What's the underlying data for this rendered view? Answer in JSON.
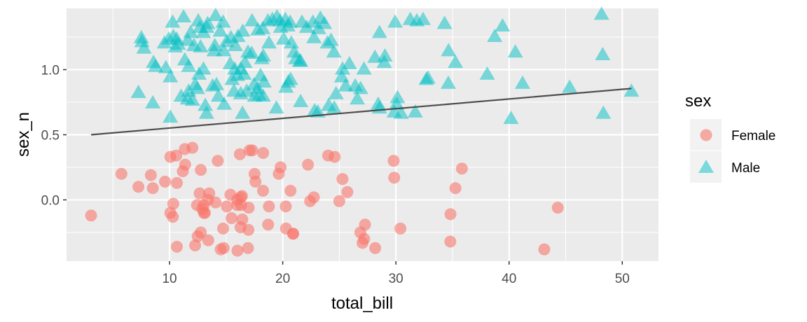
{
  "chart_data": {
    "type": "scatter",
    "xlabel": "total_bill",
    "ylabel": "sex_n",
    "xlim": [
      0.9,
      53.2
    ],
    "ylim": [
      -0.47,
      1.47
    ],
    "x_ticks": [
      10,
      20,
      30,
      40,
      50
    ],
    "x_tick_labels": [
      "10",
      "20",
      "30",
      "40",
      "50"
    ],
    "y_ticks": [
      0.0,
      0.5,
      1.0
    ],
    "y_tick_labels": [
      "0.0",
      "0.5",
      "1.0"
    ],
    "grid": true,
    "legend": {
      "title": "sex",
      "position": "right",
      "entries": [
        {
          "label": "Female",
          "shape": "circle",
          "color": "#F8766D"
        },
        {
          "label": "Male",
          "shape": "triangle",
          "color": "#00BFC4"
        }
      ]
    },
    "series": [
      {
        "name": "Female",
        "shape": "circle",
        "color": "#F8766D",
        "points": [
          [
            3.07,
            -0.12
          ],
          [
            5.75,
            0.2
          ],
          [
            7.25,
            0.1
          ],
          [
            8.35,
            0.19
          ],
          [
            8.52,
            0.09
          ],
          [
            9.6,
            0.14
          ],
          [
            10.07,
            -0.1
          ],
          [
            10.29,
            -0.13
          ],
          [
            10.33,
            -0.03
          ],
          [
            10.65,
            -0.36
          ],
          [
            10.65,
            0.13
          ],
          [
            10.07,
            0.33
          ],
          [
            10.59,
            0.34
          ],
          [
            11.17,
            0.22
          ],
          [
            11.38,
            0.27
          ],
          [
            11.35,
            0.39
          ],
          [
            12.02,
            0.4
          ],
          [
            12.26,
            -0.35
          ],
          [
            12.43,
            -0.04
          ],
          [
            12.48,
            -0.28
          ],
          [
            12.66,
            0.05
          ],
          [
            12.76,
            -0.25
          ],
          [
            12.76,
            0.23
          ],
          [
            12.9,
            -0.07
          ],
          [
            13.03,
            -0.1
          ],
          [
            13.03,
            -0.04
          ],
          [
            13.13,
            -0.1
          ],
          [
            13.42,
            -0.31
          ],
          [
            13.51,
            0.05
          ],
          [
            13.39,
            0.0
          ],
          [
            14.07,
            -0.02
          ],
          [
            14.52,
            -0.38
          ],
          [
            14.78,
            -0.37
          ],
          [
            14.73,
            -0.22
          ],
          [
            14.26,
            0.3
          ],
          [
            15.06,
            -0.05
          ],
          [
            15.38,
            0.04
          ],
          [
            15.48,
            -0.14
          ],
          [
            15.98,
            -0.04
          ],
          [
            15.98,
            0.0
          ],
          [
            16.0,
            -0.39
          ],
          [
            16.27,
            -0.21
          ],
          [
            16.29,
            0.02
          ],
          [
            16.4,
            0.03
          ],
          [
            16.32,
            -0.04
          ],
          [
            16.21,
            0.35
          ],
          [
            16.43,
            -0.15
          ],
          [
            16.97,
            -0.23
          ],
          [
            16.99,
            -0.06
          ],
          [
            16.93,
            -0.37
          ],
          [
            17.07,
            0.38
          ],
          [
            17.31,
            0.38
          ],
          [
            17.51,
            0.2
          ],
          [
            17.59,
            0.14
          ],
          [
            18.26,
            0.07
          ],
          [
            18.27,
            0.36
          ],
          [
            18.71,
            -0.19
          ],
          [
            18.78,
            -0.05
          ],
          [
            19.65,
            0.2
          ],
          [
            19.81,
            0.25
          ],
          [
            20.27,
            -0.05
          ],
          [
            20.29,
            -0.22
          ],
          [
            20.69,
            0.07
          ],
          [
            20.92,
            -0.26
          ],
          [
            20.92,
            -0.26
          ],
          [
            22.23,
            0.27
          ],
          [
            22.42,
            -0.01
          ],
          [
            22.75,
            0.02
          ],
          [
            24.01,
            0.34
          ],
          [
            24.59,
            0.33
          ],
          [
            25.0,
            -0.01
          ],
          [
            25.28,
            0.16
          ],
          [
            25.71,
            0.06
          ],
          [
            26.86,
            -0.25
          ],
          [
            27.05,
            -0.33
          ],
          [
            27.2,
            -0.3
          ],
          [
            27.27,
            -0.19
          ],
          [
            28.17,
            -0.37
          ],
          [
            29.85,
            0.17
          ],
          [
            29.8,
            0.3
          ],
          [
            30.4,
            -0.22
          ],
          [
            34.81,
            -0.32
          ],
          [
            34.82,
            -0.11
          ],
          [
            35.26,
            0.09
          ],
          [
            35.83,
            0.24
          ],
          [
            43.11,
            -0.38
          ],
          [
            44.3,
            -0.06
          ]
        ]
      },
      {
        "name": "Male",
        "shape": "triangle",
        "color": "#00BFC4",
        "points": [
          [
            7.25,
            0.82
          ],
          [
            7.51,
            1.24
          ],
          [
            7.74,
            1.16
          ],
          [
            7.56,
            1.21
          ],
          [
            8.58,
            1.05
          ],
          [
            8.52,
            0.74
          ],
          [
            8.77,
            1.02
          ],
          [
            9.68,
            1.01
          ],
          [
            9.55,
            1.2
          ],
          [
            9.94,
            1.23
          ],
          [
            10.07,
            0.63
          ],
          [
            10.07,
            0.94
          ],
          [
            10.34,
            1.25
          ],
          [
            10.27,
            1.36
          ],
          [
            10.51,
            1.17
          ],
          [
            10.63,
            1.23
          ],
          [
            10.77,
            1.19
          ],
          [
            11.02,
            0.79
          ],
          [
            11.24,
            1.4
          ],
          [
            11.35,
            1.07
          ],
          [
            11.61,
            1.22
          ],
          [
            11.69,
            0.83
          ],
          [
            11.87,
            1.28
          ],
          [
            11.69,
            1.02
          ],
          [
            11.59,
            0.77
          ],
          [
            12.16,
            1.18
          ],
          [
            12.03,
            0.76
          ],
          [
            12.26,
            0.88
          ],
          [
            12.46,
            0.85
          ],
          [
            12.6,
            0.96
          ],
          [
            12.54,
            1.37
          ],
          [
            12.69,
            1.32
          ],
          [
            12.74,
            1.17
          ],
          [
            13.0,
            1.0
          ],
          [
            13.0,
            1.28
          ],
          [
            13.16,
            0.72
          ],
          [
            13.28,
            1.32
          ],
          [
            13.27,
            0.66
          ],
          [
            13.37,
            1.35
          ],
          [
            13.81,
            0.87
          ],
          [
            13.94,
            1.14
          ],
          [
            14.0,
            1.18
          ],
          [
            14.07,
            1.41
          ],
          [
            14.15,
            0.88
          ],
          [
            14.31,
            0.79
          ],
          [
            14.48,
            1.29
          ],
          [
            14.73,
            1.36
          ],
          [
            14.83,
            0.73
          ],
          [
            14.78,
            1.14
          ],
          [
            15.04,
            1.21
          ],
          [
            15.36,
            1.04
          ],
          [
            15.42,
            1.24
          ],
          [
            15.53,
            0.92
          ],
          [
            15.69,
            0.83
          ],
          [
            15.77,
            1.0
          ],
          [
            15.81,
            1.18
          ],
          [
            16.0,
            0.95
          ],
          [
            16.04,
            1.25
          ],
          [
            16.29,
            0.81
          ],
          [
            16.29,
            1.0
          ],
          [
            16.45,
            0.66
          ],
          [
            16.47,
            1.29
          ],
          [
            16.58,
            0.96
          ],
          [
            16.82,
            0.83
          ],
          [
            16.66,
            1.05
          ],
          [
            16.93,
            1.13
          ],
          [
            17.26,
            1.12
          ],
          [
            17.29,
            1.37
          ],
          [
            17.46,
            0.88
          ],
          [
            17.51,
            0.79
          ],
          [
            17.78,
            0.85
          ],
          [
            17.81,
            1.3
          ],
          [
            17.92,
            0.8
          ],
          [
            18.04,
            0.95
          ],
          [
            18.15,
            1.08
          ],
          [
            18.24,
            1.31
          ],
          [
            18.28,
            0.79
          ],
          [
            18.35,
            0.9
          ],
          [
            18.29,
            1.1
          ],
          [
            18.69,
            1.37
          ],
          [
            18.78,
            1.2
          ],
          [
            19.08,
            1.38
          ],
          [
            19.44,
            0.7
          ],
          [
            19.49,
            1.4
          ],
          [
            19.77,
            1.37
          ],
          [
            19.82,
            1.32
          ],
          [
            20.08,
            1.23
          ],
          [
            20.23,
            1.38
          ],
          [
            20.29,
            0.86
          ],
          [
            20.45,
            1.33
          ],
          [
            20.49,
            0.9
          ],
          [
            20.65,
            1.36
          ],
          [
            20.69,
            0.92
          ],
          [
            20.76,
            1.2
          ],
          [
            21.01,
            1.13
          ],
          [
            21.16,
            1.08
          ],
          [
            21.5,
            1.06
          ],
          [
            21.58,
            1.06
          ],
          [
            21.7,
            1.36
          ],
          [
            21.58,
            0.75
          ],
          [
            22.12,
            1.32
          ],
          [
            22.67,
            1.36
          ],
          [
            22.76,
            1.24
          ],
          [
            22.82,
            0.68
          ],
          [
            23.1,
            0.67
          ],
          [
            23.33,
            1.39
          ],
          [
            23.17,
            1.31
          ],
          [
            23.68,
            1.35
          ],
          [
            23.95,
            1.2
          ],
          [
            24.06,
            0.72
          ],
          [
            24.27,
            1.22
          ],
          [
            24.52,
            1.13
          ],
          [
            24.55,
            0.7
          ],
          [
            24.71,
            0.81
          ],
          [
            25.21,
            0.94
          ],
          [
            25.29,
            1.0
          ],
          [
            25.56,
            0.87
          ],
          [
            25.89,
            1.04
          ],
          [
            26.41,
            0.87
          ],
          [
            26.59,
            0.77
          ],
          [
            26.88,
            0.85
          ],
          [
            27.18,
            1.0
          ],
          [
            28.15,
            1.09
          ],
          [
            28.44,
            0.73
          ],
          [
            28.55,
            0.7
          ],
          [
            28.55,
            1.28
          ],
          [
            28.97,
            1.05
          ],
          [
            29.03,
            1.1
          ],
          [
            29.93,
            1.36
          ],
          [
            29.85,
            0.67
          ],
          [
            30.06,
            0.73
          ],
          [
            30.14,
            0.78
          ],
          [
            30.46,
            0.66
          ],
          [
            31.27,
            1.38
          ],
          [
            31.71,
            0.67
          ],
          [
            31.85,
            1.37
          ],
          [
            32.4,
            1.38
          ],
          [
            32.68,
            0.92
          ],
          [
            32.83,
            0.93
          ],
          [
            34.3,
            1.35
          ],
          [
            34.63,
            0.89
          ],
          [
            34.65,
            1.14
          ],
          [
            35.26,
            1.05
          ],
          [
            38.07,
            0.96
          ],
          [
            38.73,
            1.25
          ],
          [
            39.42,
            1.33
          ],
          [
            40.17,
            0.62
          ],
          [
            40.55,
            1.13
          ],
          [
            41.19,
            0.89
          ],
          [
            45.35,
            0.86
          ],
          [
            48.17,
            1.42
          ],
          [
            48.27,
            1.11
          ],
          [
            48.33,
            0.66
          ],
          [
            50.81,
            0.83
          ]
        ]
      }
    ],
    "trend_line": {
      "color": "#4D4D4D",
      "x": [
        3.07,
        50.81
      ],
      "y": [
        0.5,
        0.855
      ]
    }
  }
}
